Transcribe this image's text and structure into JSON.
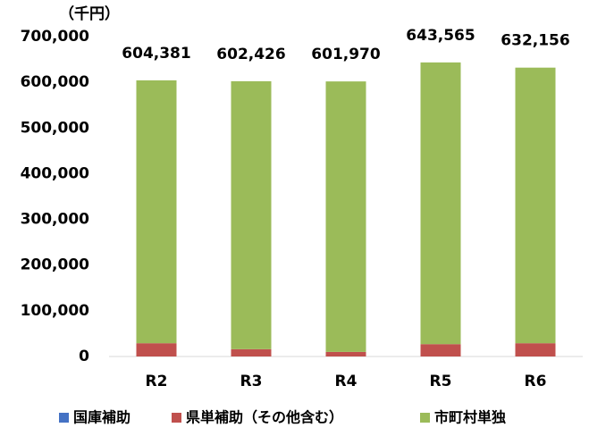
{
  "chart_data": {
    "type": "stacked_bar",
    "y_label": "（千円）",
    "categories": [
      "R2",
      "R3",
      "R4",
      "R5",
      "R6"
    ],
    "series": [
      {
        "name": "国庫補助",
        "color": "#4472c4",
        "values": [
          0,
          0,
          0,
          0,
          0
        ]
      },
      {
        "name": "県単補助（その他含む）",
        "color": "#c0504d",
        "values": [
          29000,
          16000,
          10000,
          27000,
          29000
        ]
      },
      {
        "name": "市町村単独",
        "color": "#9bbb59",
        "values": [
          575381,
          586426,
          591970,
          616565,
          603156
        ]
      }
    ],
    "totals": [
      604381,
      602426,
      601970,
      643565,
      632156
    ],
    "total_labels": [
      "604,381",
      "602,426",
      "601,970",
      "643,565",
      "632,156"
    ],
    "ylim": [
      0,
      700000
    ],
    "yticks": [
      0,
      {
        "value": 100000,
        "label": "100,000"
      },
      {
        "value": 200000,
        "label": "200,000"
      },
      {
        "value": 300000,
        "label": "300,000"
      },
      {
        "value": 400000,
        "label": "400,000"
      },
      {
        "value": 500000,
        "label": "500,000"
      },
      {
        "value": 600000,
        "label": "600,000"
      },
      {
        "value": 700000,
        "label": "700,000"
      }
    ],
    "grid": false
  }
}
